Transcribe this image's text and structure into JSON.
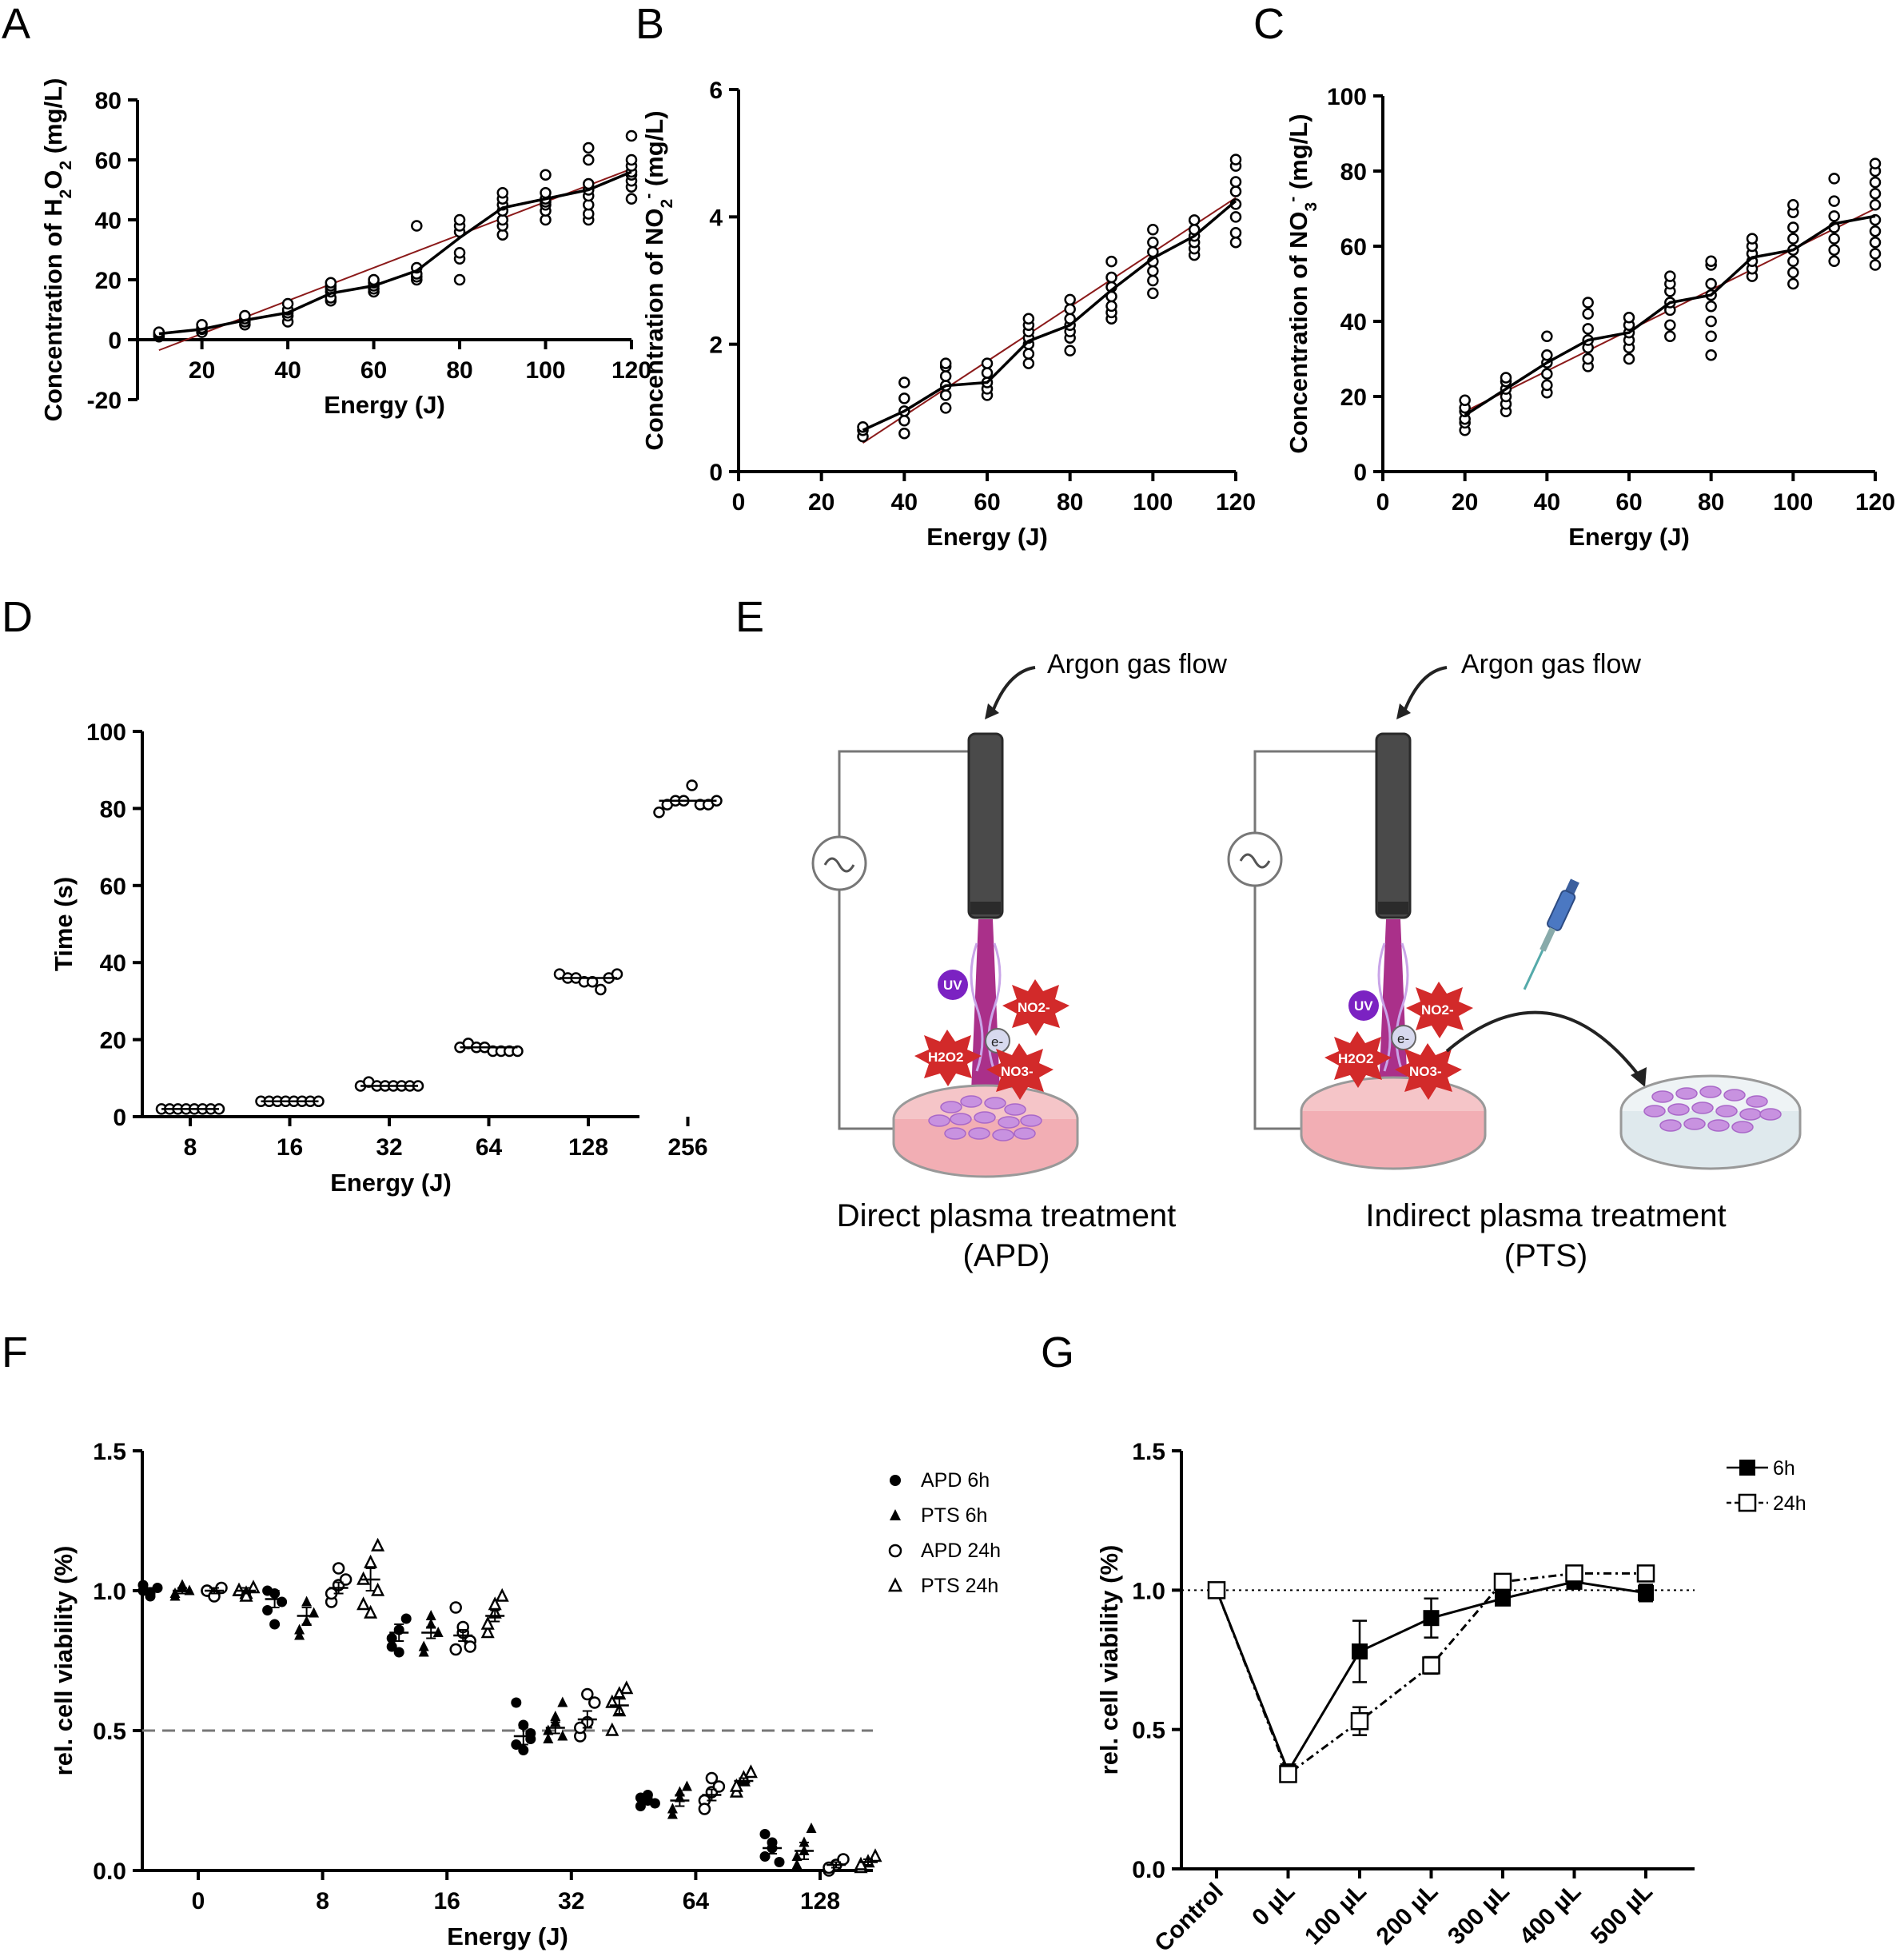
{
  "panels": {
    "A": "A",
    "B": "B",
    "C": "C",
    "D": "D",
    "E": "E",
    "F": "F",
    "G": "G"
  },
  "chart_data": [
    {
      "id": "A",
      "type": "scatter",
      "xlabel": "Energy (J)",
      "ylabel": "Concentration of H2O2 (mg/L)",
      "ylim": [
        -20,
        80
      ],
      "xlim": [
        5,
        120
      ],
      "xticks": [
        20,
        40,
        60,
        80,
        100,
        120
      ],
      "yticks": [
        -20,
        0,
        20,
        40,
        60,
        80
      ],
      "x": [
        10,
        20,
        30,
        40,
        50,
        60,
        70,
        80,
        90,
        100,
        110,
        120
      ],
      "points": [
        [
          1,
          1.5,
          2,
          2.5
        ],
        [
          2.5,
          3.5,
          4,
          5
        ],
        [
          5,
          6,
          7,
          8
        ],
        [
          6,
          8,
          9,
          10,
          12
        ],
        [
          13,
          14,
          16,
          17,
          18,
          19
        ],
        [
          16,
          17,
          18,
          19,
          20
        ],
        [
          20,
          21,
          22,
          24,
          38
        ],
        [
          20,
          27,
          29,
          36,
          38,
          40
        ],
        [
          35,
          38,
          40,
          43,
          45,
          47,
          49
        ],
        [
          40,
          43,
          45,
          46,
          47,
          49,
          55
        ],
        [
          40,
          42,
          45,
          48,
          50,
          52,
          60,
          64
        ],
        [
          47,
          51,
          53,
          55,
          56,
          58,
          60,
          68
        ]
      ],
      "mean_line": [
        2,
        3.5,
        6.5,
        9,
        15.5,
        18,
        23,
        34,
        44,
        47,
        50,
        56
      ],
      "fit_line": [
        [
          10,
          -3.5
        ],
        [
          120,
          57
        ]
      ],
      "fit_color": "#8b1a1a"
    },
    {
      "id": "B",
      "type": "scatter",
      "xlabel": "Energy (J)",
      "ylabel": "Concentration of NO2- (mg/L)",
      "ylim": [
        0,
        6
      ],
      "xlim": [
        0,
        120
      ],
      "xticks": [
        0,
        20,
        40,
        60,
        80,
        100,
        120
      ],
      "yticks": [
        0,
        2,
        4,
        6
      ],
      "x": [
        30,
        40,
        50,
        60,
        70,
        80,
        90,
        100,
        110,
        120
      ],
      "points": [
        [
          0.55,
          0.65,
          0.7
        ],
        [
          0.6,
          0.8,
          0.95,
          1.15,
          1.4
        ],
        [
          1.0,
          1.2,
          1.35,
          1.5,
          1.65,
          1.7
        ],
        [
          1.2,
          1.3,
          1.4,
          1.55,
          1.7
        ],
        [
          1.7,
          1.85,
          2.0,
          2.1,
          2.2,
          2.3,
          2.4
        ],
        [
          1.9,
          2.1,
          2.2,
          2.3,
          2.4,
          2.55,
          2.7
        ],
        [
          2.4,
          2.5,
          2.6,
          2.75,
          2.9,
          3.05,
          3.3
        ],
        [
          2.8,
          3.0,
          3.15,
          3.3,
          3.45,
          3.6,
          3.8
        ],
        [
          3.4,
          3.5,
          3.6,
          3.7,
          3.8,
          3.95
        ],
        [
          3.6,
          3.75,
          4.0,
          4.2,
          4.4,
          4.55,
          4.8,
          4.9
        ]
      ],
      "mean_line": [
        0.65,
        0.95,
        1.35,
        1.4,
        2.05,
        2.3,
        2.85,
        3.35,
        3.7,
        4.25
      ],
      "fit_line": [
        [
          30,
          0.45
        ],
        [
          120,
          4.3
        ]
      ],
      "fit_color": "#8b1a1a"
    },
    {
      "id": "C",
      "type": "scatter",
      "xlabel": "Energy (J)",
      "ylabel": "Concentration of NO3- (mg/L)",
      "ylim": [
        0,
        100
      ],
      "xlim": [
        0,
        120
      ],
      "xticks": [
        0,
        20,
        40,
        60,
        80,
        100,
        120
      ],
      "yticks": [
        0,
        20,
        40,
        60,
        80,
        100
      ],
      "x": [
        20,
        30,
        40,
        50,
        60,
        70,
        80,
        90,
        100,
        110,
        120
      ],
      "points": [
        [
          11,
          13,
          14,
          16,
          17,
          19
        ],
        [
          16,
          18,
          20,
          22,
          24,
          25
        ],
        [
          21,
          23,
          26,
          29,
          31,
          36
        ],
        [
          28,
          30,
          33,
          35,
          38,
          42,
          45
        ],
        [
          30,
          33,
          35,
          37,
          39,
          41
        ],
        [
          36,
          39,
          43,
          45,
          48,
          50,
          52
        ],
        [
          31,
          36,
          40,
          44,
          47,
          50,
          55,
          56
        ],
        [
          52,
          54,
          56,
          58,
          60,
          62
        ],
        [
          50,
          53,
          56,
          59,
          62,
          65,
          69,
          71
        ],
        [
          56,
          59,
          62,
          65,
          68,
          72,
          78
        ],
        [
          55,
          58,
          61,
          64,
          67,
          71,
          74,
          77,
          80,
          82
        ]
      ],
      "mean_line": [
        15,
        22,
        29,
        35,
        37,
        45,
        47,
        57,
        59,
        66,
        68
      ],
      "fit_line": [
        [
          20,
          16
        ],
        [
          120,
          70
        ]
      ],
      "fit_color": "#8b1a1a"
    },
    {
      "id": "D",
      "type": "scatter",
      "xlabel": "Energy (J)",
      "ylabel": "Time (s)",
      "ylim": [
        0,
        100
      ],
      "yticks": [
        0,
        20,
        40,
        60,
        80,
        100
      ],
      "categories": [
        "8",
        "16",
        "32",
        "64",
        "128",
        "256"
      ],
      "values": [
        [
          2,
          2,
          2,
          2,
          2,
          2,
          2,
          2
        ],
        [
          4,
          4,
          4,
          4,
          4,
          4,
          4,
          4
        ],
        [
          8,
          9,
          8,
          8,
          8,
          8,
          8,
          8
        ],
        [
          18,
          19,
          18,
          18,
          17,
          17,
          17,
          17
        ],
        [
          37,
          36,
          36,
          35,
          35,
          33,
          36,
          37
        ],
        [
          79,
          81,
          82,
          82,
          86,
          81,
          81,
          82
        ]
      ],
      "medians": [
        2,
        4,
        8,
        18,
        36,
        82
      ]
    },
    {
      "id": "F",
      "type": "scatter",
      "xlabel": "Energy (J)",
      "ylabel": "rel. cell viability (%)",
      "ylim": [
        0,
        1.5
      ],
      "yticks": [
        "0.0",
        "0.5",
        "1.0",
        "1.5"
      ],
      "categories": [
        "0",
        "8",
        "16",
        "32",
        "64",
        "128"
      ],
      "reference_line": 0.5,
      "series": [
        {
          "name": "APD 6h",
          "marker": "filled-circle",
          "values": [
            [
              1.0,
              0.99,
              1.01,
              1.02,
              0.98
            ],
            [
              0.93,
              0.88,
              0.96,
              1.0,
              0.99
            ],
            [
              0.8,
              0.86,
              0.9,
              0.83,
              0.78
            ],
            [
              0.45,
              0.52,
              0.47,
              0.6,
              0.43,
              0.49
            ],
            [
              0.23,
              0.25,
              0.24,
              0.26,
              0.27
            ],
            [
              0.05,
              0.1,
              0.03,
              0.13,
              0.08
            ]
          ],
          "mean": [
            1.0,
            0.97,
            0.85,
            0.48,
            0.25,
            0.08
          ],
          "sem": [
            0.01,
            0.03,
            0.03,
            0.03,
            0.01,
            0.02
          ]
        },
        {
          "name": "PTS 6h",
          "marker": "filled-triangle",
          "values": [
            [
              0.99,
              1.01,
              1.0,
              0.98,
              1.02
            ],
            [
              0.86,
              0.96,
              0.92,
              0.84,
              0.89
            ],
            [
              0.78,
              0.88,
              0.85,
              0.8,
              0.91
            ],
            [
              0.47,
              0.53,
              0.6,
              0.5,
              0.55,
              0.48
            ],
            [
              0.2,
              0.26,
              0.3,
              0.22,
              0.28
            ],
            [
              0.02,
              0.1,
              0.15,
              0.05,
              0.07
            ]
          ],
          "mean": [
            1.0,
            0.91,
            0.85,
            0.51,
            0.25,
            0.07
          ],
          "sem": [
            0.01,
            0.03,
            0.02,
            0.02,
            0.02,
            0.03
          ]
        },
        {
          "name": "APD 24h",
          "marker": "open-circle",
          "values": [
            [
              1.0,
              0.99,
              1.01,
              1.0,
              0.98
            ],
            [
              0.96,
              1.02,
              1.04,
              0.99,
              1.08
            ],
            [
              0.79,
              0.85,
              0.82,
              0.94,
              0.87,
              0.8
            ],
            [
              0.48,
              0.53,
              0.6,
              0.51,
              0.63
            ],
            [
              0.25,
              0.28,
              0.3,
              0.22,
              0.33
            ],
            [
              0.0,
              0.02,
              0.04,
              0.01
            ]
          ],
          "mean": [
            1.0,
            1.01,
            0.84,
            0.54,
            0.27,
            0.02
          ],
          "sem": [
            0.01,
            0.02,
            0.02,
            0.03,
            0.02,
            0.01
          ]
        },
        {
          "name": "PTS 24h",
          "marker": "open-triangle",
          "values": [
            [
              1.0,
              0.99,
              1.01,
              1.0,
              0.98
            ],
            [
              0.95,
              1.1,
              1.16,
              1.04,
              0.92,
              1.0
            ],
            [
              0.85,
              0.92,
              0.98,
              0.88,
              0.95
            ],
            [
              0.5,
              0.57,
              0.65,
              0.6,
              0.63
            ],
            [
              0.28,
              0.32,
              0.35,
              0.3,
              0.33
            ],
            [
              0.01,
              0.03,
              0.05,
              0.02
            ]
          ],
          "mean": [
            1.0,
            1.04,
            0.91,
            0.59,
            0.32,
            0.03
          ],
          "sem": [
            0.01,
            0.04,
            0.02,
            0.03,
            0.01,
            0.01
          ]
        }
      ]
    },
    {
      "id": "G",
      "type": "line",
      "xlabel": "",
      "ylabel": "rel. cell viability (%)",
      "ylim": [
        0,
        1.5
      ],
      "yticks": [
        "0.0",
        "0.5",
        "1.0",
        "1.5"
      ],
      "categories": [
        "Control",
        "0 µL",
        "100 µL",
        "200 µL",
        "300 µL",
        "400 µL",
        "500 µL"
      ],
      "reference_line": 1.0,
      "series": [
        {
          "name": "6h",
          "marker": "filled-square",
          "values": [
            1.0,
            0.35,
            0.78,
            0.9,
            0.97,
            1.03,
            0.99
          ],
          "sem": [
            0.0,
            0.02,
            0.11,
            0.07,
            0.02,
            0.02,
            0.03
          ]
        },
        {
          "name": "24h",
          "marker": "open-square",
          "values": [
            1.0,
            0.34,
            0.53,
            0.73,
            1.03,
            1.06,
            1.06
          ],
          "sem": [
            0.0,
            0.02,
            0.05,
            0.03,
            0.02,
            0.01,
            0.01
          ]
        }
      ]
    }
  ],
  "diagram": {
    "gas_label": "Argon gas flow",
    "left_title": "Direct plasma treatment",
    "left_sub": "(APD)",
    "right_title": "Indirect plasma treatment",
    "right_sub": "(PTS)",
    "species": [
      "UV",
      "NO2-",
      "H2O2",
      "e-",
      "NO3-"
    ]
  }
}
